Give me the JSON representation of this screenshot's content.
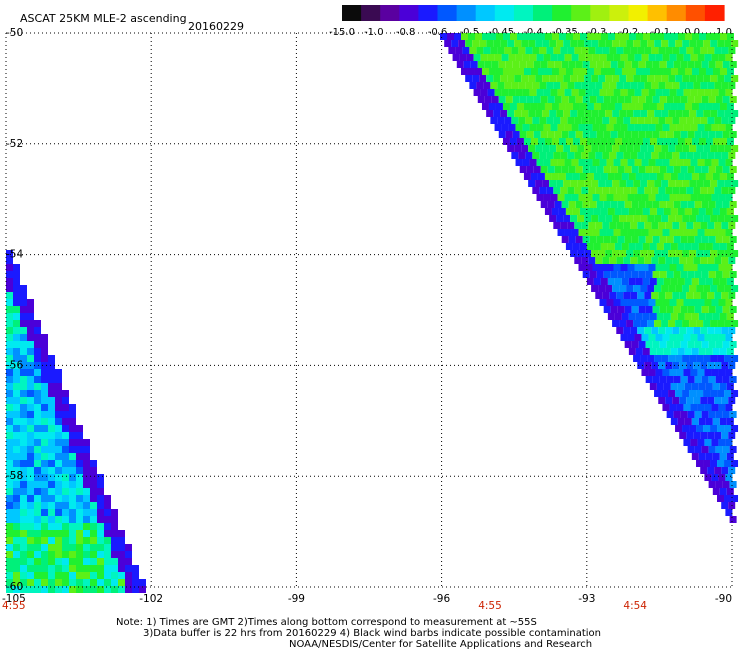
{
  "header": {
    "title": "ASCAT 25KM MLE-2 ascending",
    "date": "20160229"
  },
  "colorbar": {
    "labels": [
      "-15.0",
      "-1.0",
      "-0.8",
      "-0.6",
      "-0.5",
      "-0.45",
      "-0.4",
      "-0.35",
      "-0.3",
      "-0.2",
      "-0.1",
      "0.0",
      "1.0"
    ],
    "colors": [
      "#0b0b0b",
      "#3a0a52",
      "#5a00a0",
      "#4b00d8",
      "#1a1aff",
      "#0058ff",
      "#0090ff",
      "#00c8ff",
      "#00eaf0",
      "#00f5c0",
      "#00f07a",
      "#20f030",
      "#5cf018",
      "#a0f010",
      "#ccf00c",
      "#f2f000",
      "#ffc000",
      "#ff8c00",
      "#ff5000",
      "#ff2000"
    ]
  },
  "chart_data": {
    "type": "heatmap",
    "title": "ASCAT 25KM MLE-2 ascending",
    "date": "20160229",
    "x_ticks": [
      "-105",
      "-102",
      "-99",
      "-96",
      "-93",
      "-90"
    ],
    "y_ticks": [
      "-50",
      "-52",
      "-54",
      "-56",
      "-58",
      "-60"
    ],
    "xlim": [
      -105,
      -90
    ],
    "ylim": [
      -60,
      -50
    ],
    "grid": true,
    "time_labels": [
      {
        "lon": -105,
        "text": "4:55"
      },
      {
        "lon": -95,
        "text": "4:55"
      },
      {
        "lon": -92,
        "text": "4:54"
      }
    ],
    "swaths": [
      {
        "name": "west",
        "lon_range": [
          -105,
          -102.3
        ],
        "lat_range": [
          -60,
          -54.1
        ]
      },
      {
        "name": "east",
        "lon_range": [
          -96.2,
          -90
        ],
        "lat_range": [
          -59.3,
          -50
        ]
      }
    ]
  },
  "footer": {
    "line1": "Note: 1) Times are GMT 2)Times along bottom correspond to measurement at ~55S",
    "line2": "3)Data buffer is 22 hrs from 20160229 4) Black wind barbs indicate possible contamination",
    "line3": "NOAA/NESDIS/Center for Satellite Applications and Research"
  }
}
